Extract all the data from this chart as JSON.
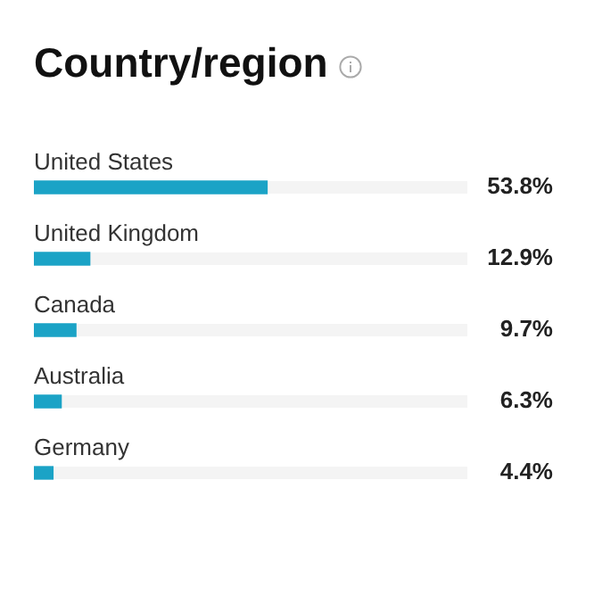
{
  "chart_data": {
    "type": "bar",
    "orientation": "horizontal",
    "title": "Country/region",
    "categories": [
      "United States",
      "United Kingdom",
      "Canada",
      "Australia",
      "Germany"
    ],
    "values": [
      53.8,
      12.9,
      9.7,
      6.3,
      4.4
    ],
    "value_labels": [
      "53.8%",
      "12.9%",
      "9.7%",
      "6.3%",
      "4.4%"
    ],
    "color": "#1ba3c6",
    "xlim": [
      0,
      100
    ]
  }
}
